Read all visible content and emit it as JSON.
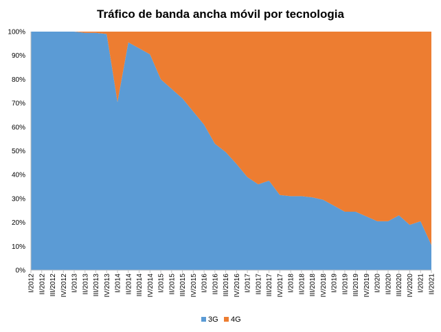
{
  "chart_data": {
    "type": "area",
    "stacked": "percent",
    "title": "Tráfico de banda ancha móvil por tecnologia",
    "xlabel": "",
    "ylabel": "",
    "ylim": [
      0,
      100
    ],
    "y_ticks": [
      "0%",
      "10%",
      "20%",
      "30%",
      "40%",
      "50%",
      "60%",
      "70%",
      "80%",
      "90%",
      "100%"
    ],
    "grid": false,
    "legend_position": "bottom",
    "categories": [
      "I/2012",
      "II/2012",
      "III/2012",
      "IV/2012",
      "I/2013",
      "II/2013",
      "III/2013",
      "IV/2013",
      "I/2014",
      "II/2014",
      "III/2014",
      "IV/2014",
      "I/2015",
      "II/2015",
      "III/2015",
      "IV/2015",
      "I/2016",
      "II/2016",
      "III/2016",
      "IV/2016",
      "I/2017",
      "II/2017",
      "III/2017",
      "IV/2017",
      "I/2018",
      "II/2018",
      "III/2018",
      "IV/2018",
      "I/2019",
      "II/2019",
      "III/2019",
      "IV/2019",
      "I/2020",
      "II/2020",
      "III/2020",
      "IV/2020",
      "I/2021",
      "II/2021"
    ],
    "series": [
      {
        "name": "3G",
        "color": "#5B9BD5",
        "values": [
          100,
          100,
          100,
          100,
          100,
          99.5,
          99.5,
          99,
          70.5,
          95.5,
          93,
          90.5,
          80,
          76,
          72,
          66.5,
          61,
          53,
          49.5,
          44.5,
          39,
          36,
          37.5,
          31.5,
          31,
          31,
          30.5,
          29.5,
          27,
          24.5,
          24.5,
          22.5,
          20.5,
          20.5,
          23,
          19,
          20.5,
          10.5
        ]
      },
      {
        "name": "4G",
        "color": "#ED7D31",
        "values": [
          0,
          0,
          0,
          0,
          0,
          0.5,
          0.5,
          1,
          29.5,
          4.5,
          7,
          9.5,
          20,
          24,
          28,
          33.5,
          39,
          47,
          50.5,
          55.5,
          61,
          64,
          62.5,
          68.5,
          69,
          69,
          69.5,
          70.5,
          73,
          75.5,
          75.5,
          77.5,
          79.5,
          79.5,
          77,
          81,
          79.5,
          89.5
        ]
      }
    ]
  }
}
